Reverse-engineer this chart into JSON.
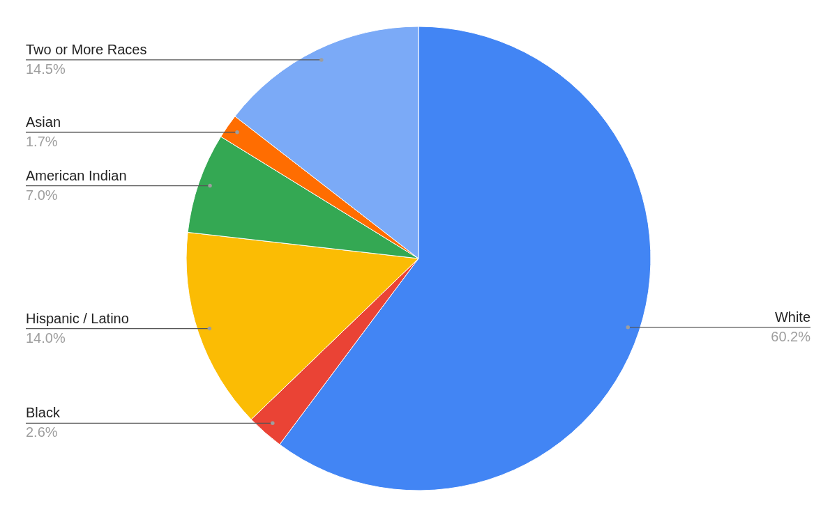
{
  "chart_data": {
    "type": "pie",
    "categories": [
      "White",
      "Black",
      "Hispanic / Latino",
      "American Indian",
      "Asian",
      "Two or More Races"
    ],
    "values": [
      60.2,
      2.6,
      14.0,
      7.0,
      1.7,
      14.5
    ],
    "value_labels": [
      "60.2%",
      "2.6%",
      "14.0%",
      "7.0%",
      "1.7%",
      "14.5%"
    ],
    "colors": [
      "#4285f4",
      "#ea4335",
      "#fbbc04",
      "#34a853",
      "#ff6d01",
      "#7baaf7"
    ]
  }
}
